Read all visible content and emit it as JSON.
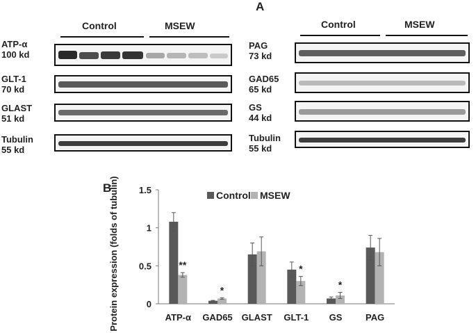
{
  "panelA": {
    "letter": "A",
    "groups": {
      "control": "Control",
      "msew": "MSEW"
    },
    "left_blots": [
      {
        "name": "ATP-α",
        "size": "100 kd"
      },
      {
        "name": "GLT-1",
        "size": "70 kd"
      },
      {
        "name": "GLAST",
        "size": "51 kd"
      },
      {
        "name": "Tubulin",
        "size": "55 kd"
      }
    ],
    "right_blots": [
      {
        "name": "PAG",
        "size": "73 kd"
      },
      {
        "name": "GAD65",
        "size": "65 kd"
      },
      {
        "name": "GS",
        "size": "44 kd"
      },
      {
        "name": "Tubulin",
        "size": "55 kd"
      }
    ]
  },
  "panelB": {
    "letter": "B"
  },
  "chart_data": {
    "type": "bar",
    "categories": [
      "ATP-α",
      "GAD65",
      "GLAST",
      "GLT-1",
      "GS",
      "PAG"
    ],
    "series": [
      {
        "name": "Control",
        "color": "#595959",
        "values": [
          1.08,
          0.04,
          0.65,
          0.45,
          0.07,
          0.74
        ],
        "errors": [
          0.12,
          0.005,
          0.15,
          0.1,
          0.02,
          0.16
        ]
      },
      {
        "name": "MSEW",
        "color": "#b3b3b3",
        "values": [
          0.38,
          0.07,
          0.69,
          0.3,
          0.11,
          0.68
        ],
        "errors": [
          0.03,
          0.01,
          0.19,
          0.06,
          0.04,
          0.18
        ]
      }
    ],
    "significance": [
      "**",
      "*",
      "",
      "*",
      "*",
      ""
    ],
    "ylabel": "Protein expression (folds of tubulin)",
    "ylim": [
      0,
      1.5
    ],
    "yticks": [
      "0",
      "0.5",
      "1",
      "1.5"
    ],
    "legend_position": "top",
    "grid": false
  }
}
